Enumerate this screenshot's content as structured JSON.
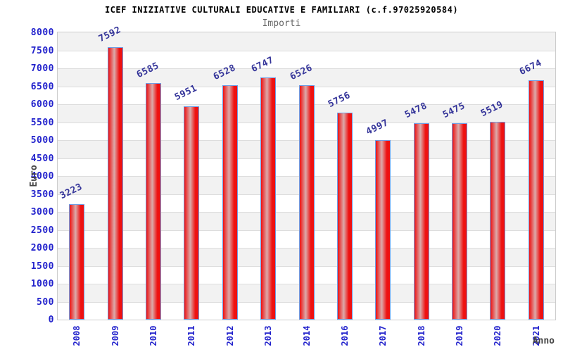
{
  "chart_data": {
    "type": "bar",
    "title": "ICEF INIZIATIVE CULTURALI EDUCATIVE E FAMILIARI (c.f.97025920584)",
    "subtitle": "Importi",
    "xlabel": "Anno",
    "ylabel": "Euro",
    "categories": [
      "2008",
      "2009",
      "2010",
      "2011",
      "2012",
      "2013",
      "2014",
      "2016",
      "2017",
      "2018",
      "2019",
      "2020",
      "2021"
    ],
    "values": [
      3223,
      7592,
      6585,
      5951,
      6528,
      6747,
      6526,
      5756,
      4997,
      5478,
      5475,
      5519,
      6674
    ],
    "series": [
      {
        "name": "Importi",
        "values": [
          3223,
          7592,
          6585,
          5951,
          6528,
          6747,
          6526,
          5756,
          4997,
          5478,
          5475,
          5519,
          6674
        ]
      }
    ],
    "ylim": [
      0,
      8000
    ],
    "ytick_step": 500,
    "grid": true,
    "legend_position": "none",
    "bar_value_labels": [
      3223,
      7592,
      6585,
      5951,
      6528,
      6747,
      6526,
      5756,
      4997,
      5478,
      5475,
      5519,
      6674
    ],
    "x_tick_rotation_deg": 90,
    "value_label_rotation_deg": 26
  },
  "colors": {
    "title": "#000000",
    "subtitle": "#666666",
    "axis_title": "#444444",
    "tick_label": "#2222cc",
    "value_label": "#333399",
    "bar_edge": "#ee1111",
    "bar_mid": "#dcaaaa",
    "bar_border": "#6e9ee6",
    "band_a": "#f2f2f2",
    "band_b": "#ffffff",
    "grid": "#dddddd",
    "plot_border": "#cccccc",
    "background": "#ffffff"
  }
}
